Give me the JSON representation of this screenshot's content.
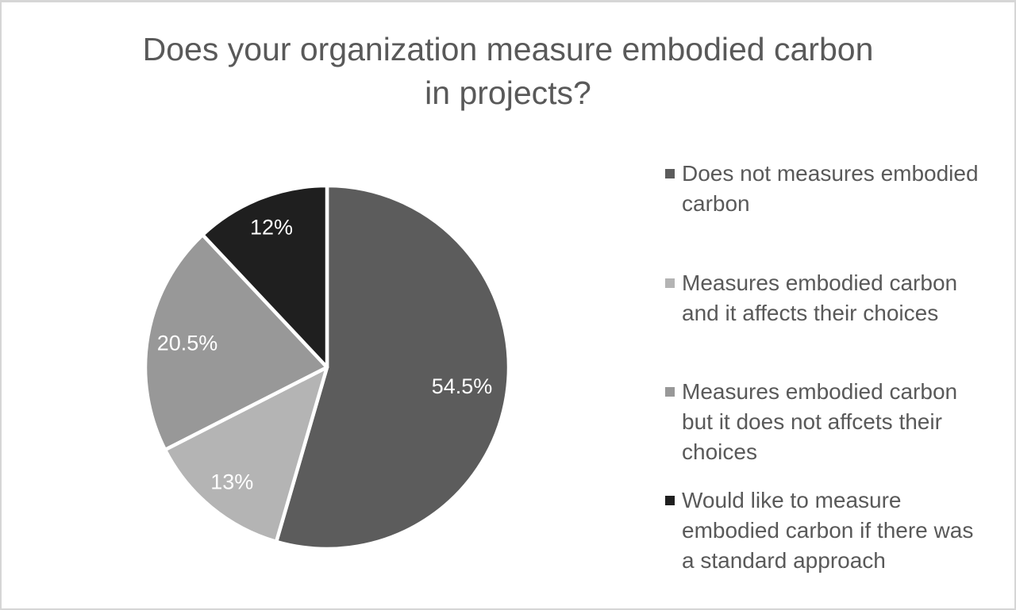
{
  "chart_data": {
    "type": "pie",
    "title": "Does your organization measure embodied carbon in projects?",
    "title_lines": [
      "Does your organization measure embodied carbon",
      "in projects?"
    ],
    "start_angle_deg": 0,
    "direction": "clockwise",
    "grid": "off",
    "label_color": "#ffffff",
    "text_color": "#595959",
    "background_color": "#ffffff",
    "border_color": "#d6d6d6",
    "slice_divider_color": "#ffffff",
    "slices": [
      {
        "name": "Does not measures embodied carbon",
        "value": 54.5,
        "label": "54.5%",
        "color": "#5c5c5c",
        "label_r": 0.75
      },
      {
        "name": "Measures embodied carbon and it affects their choices",
        "value": 13,
        "label": "13%",
        "color": "#b4b4b4",
        "label_r": 0.82
      },
      {
        "name": "Measures embodied carbon but it does not affcets their choices",
        "value": 20.5,
        "label": "20.5%",
        "color": "#989898",
        "label_r": 0.78
      },
      {
        "name": "Would like to measure embodied carbon if there was a standard approach",
        "value": 12,
        "label": "12%",
        "color": "#1f1f1f",
        "label_r": 0.83
      }
    ],
    "legend": {
      "position": "right",
      "items": [
        {
          "label": "Does not measures embodied carbon",
          "lines": [
            "Does not measures embodied",
            "carbon",
            ""
          ]
        },
        {
          "label": "Measures embodied carbon and it affects their choices",
          "lines": [
            "Measures embodied carbon",
            "and it affects their choices",
            ""
          ]
        },
        {
          "label": "Measures embodied carbon but it does not affcets their choices",
          "lines": [
            "Measures embodied carbon",
            "but it does not affcets their",
            "choices"
          ]
        },
        {
          "label": "Would like to measure embodied carbon if there was a standard approach",
          "lines": [
            "Would like to measure",
            "embodied carbon if there was",
            "a standard approach"
          ]
        }
      ]
    }
  }
}
